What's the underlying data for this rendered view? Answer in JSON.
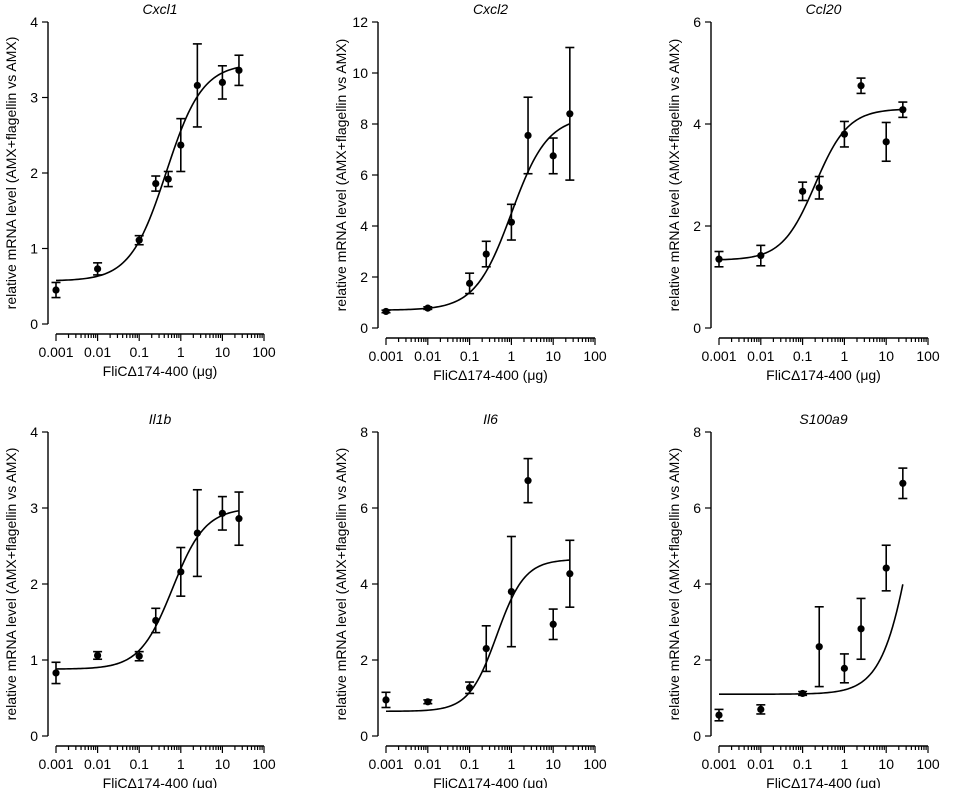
{
  "chart_data": [
    {
      "type": "scatter",
      "title": "Cxcl1",
      "xlabel": "FliCΔ174-400 (μg)",
      "ylabel": "relative mRNA level (AMX+flagellin vs AMX)",
      "xscale": "log",
      "xlim": [
        0.001,
        100
      ],
      "ylim": [
        0,
        4
      ],
      "yticks": [
        0,
        1,
        2,
        3,
        4
      ],
      "xticks": [
        0.001,
        0.01,
        0.1,
        1,
        10,
        100
      ],
      "xtick_labels": [
        "0.001",
        "0.01",
        "0.1",
        "1",
        "10",
        "100"
      ],
      "x": [
        0.001,
        0.01,
        0.1,
        0.25,
        0.5,
        1,
        2.5,
        10,
        25
      ],
      "y": [
        0.45,
        0.73,
        1.11,
        1.86,
        1.92,
        2.37,
        3.16,
        3.2,
        3.36
      ],
      "err": [
        0.1,
        0.08,
        0.06,
        0.1,
        0.1,
        0.35,
        0.55,
        0.22,
        0.2
      ],
      "fit": {
        "bottom": 0.57,
        "top": 3.45,
        "logec50": -0.35,
        "hill": 1.0
      }
    },
    {
      "type": "scatter",
      "title": "Cxcl2",
      "xlabel": "FliCΔ174-400 (μg)",
      "ylabel": "relative mRNA level (AMX+flagellin vs AMX)",
      "xscale": "log",
      "xlim": [
        0.001,
        100
      ],
      "ylim": [
        0,
        12
      ],
      "yticks": [
        0,
        2,
        4,
        6,
        8,
        10,
        12
      ],
      "xticks": [
        0.001,
        0.01,
        0.1,
        1,
        10,
        100
      ],
      "xtick_labels": [
        "0.001",
        "0.01",
        "0.1",
        "1",
        "10",
        "100"
      ],
      "x": [
        0.001,
        0.01,
        0.1,
        0.25,
        1,
        2.5,
        10,
        25
      ],
      "y": [
        0.65,
        0.78,
        1.75,
        2.9,
        4.15,
        7.55,
        6.75,
        8.4
      ],
      "err": [
        0.05,
        0.05,
        0.4,
        0.5,
        0.7,
        1.5,
        0.7,
        2.6
      ],
      "fit": {
        "bottom": 0.7,
        "top": 8.3,
        "logec50": 0.0,
        "hill": 1.0
      }
    },
    {
      "type": "scatter",
      "title": "Ccl20",
      "xlabel": "FliCΔ174-400 (μg)",
      "ylabel": "relative mRNA level (AMX+flagellin vs AMX)",
      "xscale": "log",
      "xlim": [
        0.001,
        100
      ],
      "ylim": [
        0,
        6
      ],
      "yticks": [
        0,
        2,
        4,
        6
      ],
      "xticks": [
        0.001,
        0.01,
        0.1,
        1,
        10,
        100
      ],
      "xtick_labels": [
        "0.001",
        "0.01",
        "0.1",
        "1",
        "10",
        "100"
      ],
      "x": [
        0.001,
        0.01,
        0.1,
        0.25,
        1,
        2.5,
        10,
        25
      ],
      "y": [
        1.35,
        1.42,
        2.68,
        2.75,
        3.8,
        4.75,
        3.65,
        4.28
      ],
      "err": [
        0.15,
        0.2,
        0.18,
        0.22,
        0.25,
        0.15,
        0.38,
        0.15
      ],
      "fit": {
        "bottom": 1.33,
        "top": 4.3,
        "logec50": -0.7,
        "hill": 1.1
      }
    },
    {
      "type": "scatter",
      "title": "Il1b",
      "xlabel": "FliCΔ174-400 (μg)",
      "ylabel": "relative mRNA level (AMX+flagellin vs AMX)",
      "xscale": "log",
      "xlim": [
        0.001,
        100
      ],
      "ylim": [
        0,
        4
      ],
      "yticks": [
        0,
        1,
        2,
        3,
        4
      ],
      "xticks": [
        0.001,
        0.01,
        0.1,
        1,
        10,
        100
      ],
      "xtick_labels": [
        "0.001",
        "0.01",
        "0.1",
        "1",
        "10",
        "100"
      ],
      "x": [
        0.001,
        0.01,
        0.1,
        0.25,
        1,
        2.5,
        10,
        25
      ],
      "y": [
        0.83,
        1.06,
        1.05,
        1.52,
        2.16,
        2.67,
        2.93,
        2.86
      ],
      "err": [
        0.14,
        0.05,
        0.06,
        0.16,
        0.32,
        0.57,
        0.22,
        0.35
      ],
      "fit": {
        "bottom": 0.88,
        "top": 3.0,
        "logec50": -0.2,
        "hill": 1.1
      }
    },
    {
      "type": "scatter",
      "title": "Il6",
      "xlabel": "FliCΔ174-400 (μg)",
      "ylabel": "relative mRNA level (AMX+flagellin vs AMX)",
      "xscale": "log",
      "xlim": [
        0.001,
        100
      ],
      "ylim": [
        0,
        8
      ],
      "yticks": [
        0,
        2,
        4,
        6,
        8
      ],
      "xticks": [
        0.001,
        0.01,
        0.1,
        1,
        10,
        100
      ],
      "xtick_labels": [
        "0.001",
        "0.01",
        "0.1",
        "1",
        "10",
        "100"
      ],
      "x": [
        0.001,
        0.01,
        0.1,
        0.25,
        1,
        2.5,
        10,
        25
      ],
      "y": [
        0.95,
        0.9,
        1.27,
        2.3,
        3.8,
        6.72,
        2.94,
        4.27
      ],
      "err": [
        0.2,
        0.05,
        0.15,
        0.6,
        1.45,
        0.58,
        0.4,
        0.88
      ],
      "fit": {
        "bottom": 0.65,
        "top": 4.65,
        "logec50": -0.35,
        "hill": 1.3
      }
    },
    {
      "type": "scatter",
      "title": "S100a9",
      "xlabel": "FliCΔ174-400 (μg)",
      "ylabel": "relative mRNA level (AMX+flagellin vs AMX)",
      "xscale": "log",
      "xlim": [
        0.001,
        100
      ],
      "ylim": [
        0,
        8
      ],
      "yticks": [
        0,
        2,
        4,
        6,
        8
      ],
      "xticks": [
        0.001,
        0.01,
        0.1,
        1,
        10,
        100
      ],
      "xtick_labels": [
        "0.001",
        "0.01",
        "0.1",
        "1",
        "10",
        "100"
      ],
      "x": [
        0.001,
        0.01,
        0.1,
        0.25,
        1,
        2.5,
        10,
        25
      ],
      "y": [
        0.55,
        0.7,
        1.12,
        2.35,
        1.78,
        2.82,
        4.42,
        6.65
      ],
      "err": [
        0.15,
        0.12,
        0.05,
        1.05,
        0.38,
        0.8,
        0.6,
        0.4
      ],
      "fit": {
        "bottom": 1.1,
        "top": 12.0,
        "logec50": 1.8,
        "hill": 1.1
      }
    }
  ]
}
